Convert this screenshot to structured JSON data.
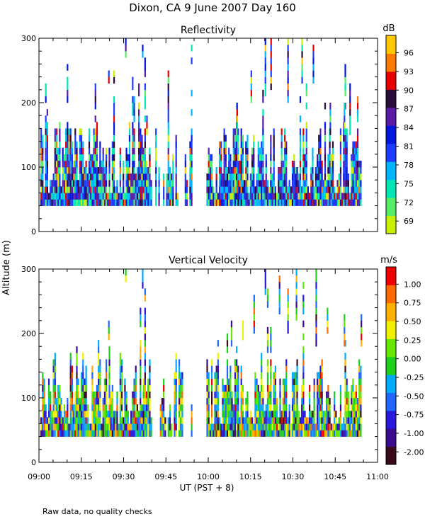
{
  "figure": {
    "title": "Dixon, CA  9 June 2007  Day 160",
    "ylabel": "Altitude (m)",
    "xlabel": "UT  (PST + 8)",
    "footnote": "Raw data, no quality checks"
  },
  "colors": {
    "reflectivity_scale": [
      "#c8f000",
      "#55ee66",
      "#00e6b4",
      "#00b4ff",
      "#1e3cff",
      "#0018dc",
      "#5a1aa6",
      "#2a0a3a",
      "#e60000",
      "#ff7a00",
      "#ffc800"
    ],
    "velocity_scale": [
      "#3a0a1a",
      "#3c0a8c",
      "#2818dc",
      "#2266ff",
      "#00aaff",
      "#1ecf1e",
      "#66e600",
      "#f0f000",
      "#ffb000",
      "#ff6a00",
      "#ee0000"
    ]
  },
  "chart_data": [
    {
      "type": "heatmap",
      "title": "Reflectivity",
      "xlabel": "UT  (PST + 8)",
      "ylabel": "Altitude (m)",
      "x_ticks": [
        "09:00",
        "09:15",
        "09:30",
        "09:45",
        "10:00",
        "10:15",
        "10:30",
        "10:45",
        "11:00"
      ],
      "xlim_minutes": [
        0,
        120
      ],
      "y_ticks": [
        "0",
        "100",
        "200",
        "300"
      ],
      "ylim": [
        0,
        300
      ],
      "colorbar_unit": "dB",
      "colorbar_ticks": [
        "96",
        "93",
        "90",
        "87",
        "84",
        "81",
        "78",
        "75",
        "72",
        "69"
      ],
      "colorbar_range": [
        68,
        98
      ],
      "data_gaps_minutes": [
        [
          54,
          59
        ]
      ],
      "min_altitude": 40,
      "grid": false
    },
    {
      "type": "heatmap",
      "title": "Vertical Velocity",
      "xlabel": "UT  (PST + 8)",
      "ylabel": "Altitude (m)",
      "x_ticks": [
        "09:00",
        "09:15",
        "09:30",
        "09:45",
        "10:00",
        "10:15",
        "10:30",
        "10:45",
        "11:00"
      ],
      "xlim_minutes": [
        0,
        120
      ],
      "y_ticks": [
        "0",
        "100",
        "200",
        "300"
      ],
      "ylim": [
        0,
        300
      ],
      "colorbar_unit": "m/s",
      "colorbar_ticks": [
        "1.00",
        "0.75",
        "0.50",
        "0.25",
        "0.00",
        "-0.25",
        "-0.50",
        "-0.75",
        "-1.00",
        "-2.00"
      ],
      "colorbar_range": [
        -2.0,
        1.25
      ],
      "data_gaps_minutes": [
        [
          54,
          59
        ]
      ],
      "min_altitude": 40,
      "grid": false
    }
  ]
}
